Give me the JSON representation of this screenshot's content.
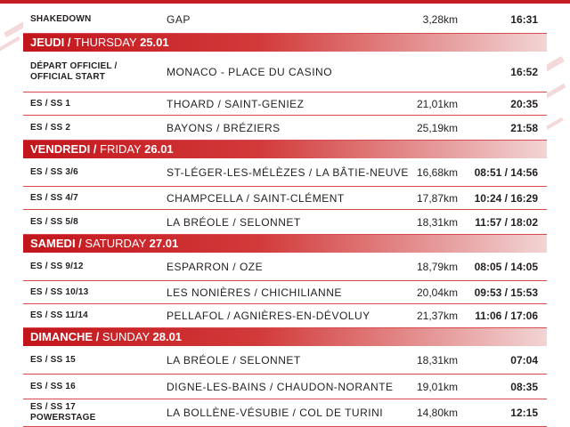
{
  "days": [
    {
      "key": "d0",
      "title_fr": "",
      "sep": "",
      "title_en": "",
      "date": "",
      "rows": [
        {
          "label": "SHAKEDOWN",
          "sub": "",
          "place": "GAP",
          "dist": "3,28km",
          "time": "16:31"
        }
      ]
    },
    {
      "key": "d1",
      "title_fr": "JEUDI",
      "sep": " / ",
      "title_en": "THURSDAY ",
      "date": "25.01",
      "rows": [
        {
          "label": "DÉPART OFFICIEL /",
          "sub": "OFFICIAL START",
          "place": "MONACO - PLACE DU CASINO",
          "dist": "",
          "time": "16:52"
        },
        {
          "label": "ES / SS 1",
          "sub": "",
          "place": "THOARD / SAINT-GENIEZ",
          "dist": "21,01km",
          "time": "20:35"
        },
        {
          "label": "ES / SS 2",
          "sub": "",
          "place": "BAYONS / BRÉZIERS",
          "dist": "25,19km",
          "time": "21:58"
        }
      ]
    },
    {
      "key": "d2",
      "title_fr": "VENDREDI",
      "sep": " / ",
      "title_en": "FRIDAY ",
      "date": "26.01",
      "rows": [
        {
          "label": "ES / SS 3/6",
          "sub": "",
          "place": "ST-LÉGER-LES-MÉLÈZES / LA BÂTIE-NEUVE",
          "dist": "16,68km",
          "time": "08:51 / 14:56"
        },
        {
          "label": "ES / SS 4/7",
          "sub": "",
          "place": "CHAMPCELLA / SAINT-CLÉMENT",
          "dist": "17,87km",
          "time": "10:24 / 16:29"
        },
        {
          "label": "ES / SS 5/8",
          "sub": "",
          "place": "LA BRÉOLE / SELONNET",
          "dist": "18,31km",
          "time": "11:57 / 18:02"
        }
      ]
    },
    {
      "key": "d3",
      "title_fr": "SAMEDI",
      "sep": " / ",
      "title_en": "SATURDAY ",
      "date": "27.01",
      "rows": [
        {
          "label": "ES / SS 9/12",
          "sub": "",
          "place": "ESPARRON / OZE",
          "dist": "18,79km",
          "time": "08:05 / 14:05"
        },
        {
          "label": "ES / SS 10/13",
          "sub": "",
          "place": "LES NONIÈRES / CHICHILIANNE",
          "dist": "20,04km",
          "time": "09:53 / 15:53"
        },
        {
          "label": "ES / SS 11/14",
          "sub": "",
          "place": "PELLAFOL / AGNIÈRES-EN-DÉVOLUY",
          "dist": "21,37km",
          "time": "11:06 / 17:06"
        }
      ]
    },
    {
      "key": "d4",
      "title_fr": "DIMANCHE",
      "sep": " / ",
      "title_en": "SUNDAY ",
      "date": "28.01",
      "rows": [
        {
          "label": "ES / SS 15",
          "sub": "",
          "place": "LA BRÉOLE / SELONNET",
          "dist": "18,31km",
          "time": "07:04"
        },
        {
          "label": "ES / SS 16",
          "sub": "",
          "place": "DIGNE-LES-BAINS / CHAUDON-NORANTE",
          "dist": "19,01km",
          "time": "08:35"
        },
        {
          "label": "ES / SS 17",
          "sub": "POWERSTAGE",
          "place": "LA BOLLÈNE-VÉSUBIE / COL DE TURINI",
          "dist": "14,80km",
          "time": "12:15"
        }
      ]
    }
  ],
  "colors": {
    "accent": "#c61d23",
    "rule": "#d94a4f",
    "text": "#231f20"
  }
}
